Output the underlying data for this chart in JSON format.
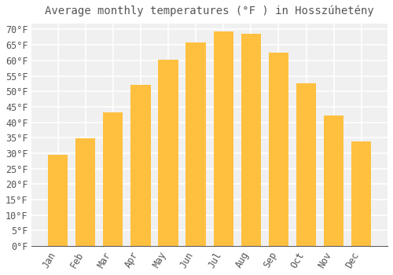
{
  "title": "Average monthly temperatures (°F ) in Hosszúhetény",
  "months": [
    "Jan",
    "Feb",
    "Mar",
    "Apr",
    "May",
    "Jun",
    "Jul",
    "Aug",
    "Sep",
    "Oct",
    "Nov",
    "Dec"
  ],
  "values": [
    29.5,
    34.7,
    43.3,
    52.0,
    60.3,
    65.7,
    69.3,
    68.5,
    62.5,
    52.7,
    42.1,
    33.8
  ],
  "bar_color_top": "#FFC040",
  "bar_color_bottom": "#FFA000",
  "bar_edge_color": "none",
  "background_color": "#FFFFFF",
  "grid_color": "#FFFFFF",
  "axis_bg_color": "#F0F0F0",
  "text_color": "#555555",
  "ylim": [
    0,
    72
  ],
  "yticks": [
    0,
    5,
    10,
    15,
    20,
    25,
    30,
    35,
    40,
    45,
    50,
    55,
    60,
    65,
    70
  ],
  "title_fontsize": 10,
  "tick_fontsize": 8.5
}
